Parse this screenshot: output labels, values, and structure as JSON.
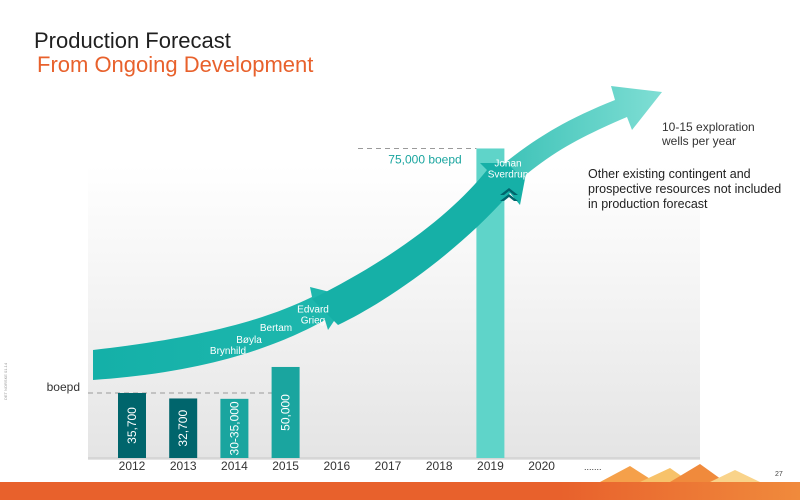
{
  "header": {
    "title": "Production Forecast",
    "subtitle": "From Ongoing Development"
  },
  "notes": {
    "wells": "10-15 exploration wells per year",
    "other_resources": "Other existing contingent and prospective resources not included in production forecast"
  },
  "page_number": "27",
  "side_code": "DET NORSKE 01.14",
  "colors": {
    "dark_teal": "#00656c",
    "mid_teal": "#1aa59f",
    "light_teal": "#5fd4c9",
    "arrow": "#14b0a8",
    "accent_orange": "#e8612c"
  },
  "chart_data": {
    "type": "bar",
    "categories": [
      "2012",
      "2013",
      "2014",
      "2015",
      "2016",
      "2017",
      "2018",
      "2019",
      "2020",
      "......."
    ],
    "bars": [
      {
        "category": "2012",
        "label": "35,700",
        "value": 35700,
        "color": "#00656c"
      },
      {
        "category": "2013",
        "label": "32,700",
        "value": 32700,
        "color": "#00656c"
      },
      {
        "category": "2014",
        "label": "30-35,000",
        "value": 32500,
        "color": "#1aa59f"
      },
      {
        "category": "2015",
        "label": "50,000",
        "value": 50000,
        "color": "#1aa59f"
      },
      {
        "category": "2019",
        "label": "",
        "value": 170000,
        "color": "#5fd4c9"
      }
    ],
    "unit_label": "boepd",
    "increment_label": "75,000 boepd",
    "growth_arrow_labels": [
      "Brynhild",
      "Bøyla",
      "Bertam",
      "Edvard Grieg",
      "Johan Sverdrup"
    ],
    "ylim": [
      0,
      200000
    ]
  }
}
